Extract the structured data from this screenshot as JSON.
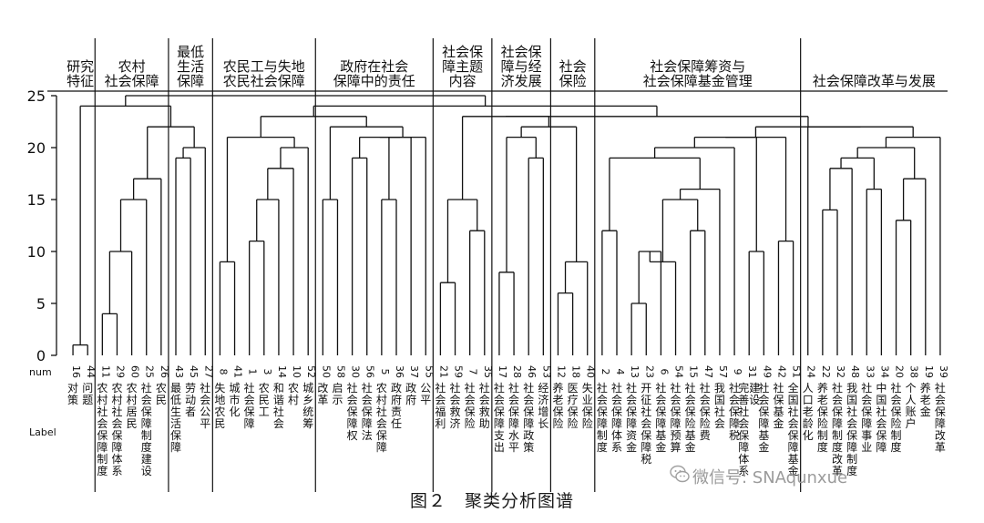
{
  "chart_data": {
    "type": "dendrogram",
    "ylim": [
      0,
      25
    ],
    "yticks": [
      0,
      5,
      10,
      15,
      20,
      25
    ],
    "xlabel_num": "num",
    "xlabel_label": "Label",
    "categories": [
      {
        "name": "研究\n特征",
        "range": [
          0,
          2
        ]
      },
      {
        "name": "农村\n社会保障",
        "range": [
          2,
          7
        ]
      },
      {
        "name": "最低\n生活\n保障",
        "range": [
          7,
          10
        ]
      },
      {
        "name": "农民工与失地\n农民社会保障",
        "range": [
          10,
          17
        ]
      },
      {
        "name": "政府在社会\n保障中的责任",
        "range": [
          17,
          25
        ]
      },
      {
        "name": "社会保\n障主题\n内容",
        "range": [
          25,
          29
        ]
      },
      {
        "name": "社会保\n障与经\n济发展",
        "range": [
          29,
          33
        ]
      },
      {
        "name": "社会\n保险",
        "range": [
          33,
          36
        ]
      },
      {
        "name": "社会保障筹资与\n社会保障基金管理",
        "range": [
          36,
          50
        ]
      },
      {
        "name": "社会保障改革与发展",
        "range": [
          50,
          60
        ]
      }
    ],
    "leaves": [
      {
        "num": "16",
        "label": "对策"
      },
      {
        "num": "44",
        "label": "问题"
      },
      {
        "num": "11",
        "label": "农村社会保障制度"
      },
      {
        "num": "29",
        "label": "农村社会保障体系"
      },
      {
        "num": "60",
        "label": "农村居民"
      },
      {
        "num": "25",
        "label": "社会保障制度建设"
      },
      {
        "num": "26",
        "label": "农民"
      },
      {
        "num": "43",
        "label": "最低生活保障"
      },
      {
        "num": "45",
        "label": "劳动者"
      },
      {
        "num": "27",
        "label": "社会公平"
      },
      {
        "num": "8",
        "label": "失地农民"
      },
      {
        "num": "41",
        "label": "城市化"
      },
      {
        "num": "1",
        "label": "社会保障"
      },
      {
        "num": "3",
        "label": "农民工"
      },
      {
        "num": "14",
        "label": "和谐社会"
      },
      {
        "num": "10",
        "label": "农村"
      },
      {
        "num": "52",
        "label": "城乡统筹"
      },
      {
        "num": "50",
        "label": "改革"
      },
      {
        "num": "58",
        "label": "启示"
      },
      {
        "num": "30",
        "label": "社会保障权"
      },
      {
        "num": "56",
        "label": "社会保障法"
      },
      {
        "num": "5",
        "label": "农村社会保障"
      },
      {
        "num": "36",
        "label": "政府责任"
      },
      {
        "num": "37",
        "label": "政府"
      },
      {
        "num": "55",
        "label": "公平"
      },
      {
        "num": "21",
        "label": "社会福利"
      },
      {
        "num": "59",
        "label": "社会救济"
      },
      {
        "num": "7",
        "label": "社会保险"
      },
      {
        "num": "35",
        "label": "社会救助"
      },
      {
        "num": "17",
        "label": "社会保障支出"
      },
      {
        "num": "28",
        "label": "社会保障水平"
      },
      {
        "num": "46",
        "label": "社会保障政策"
      },
      {
        "num": "53",
        "label": "经济增长"
      },
      {
        "num": "12",
        "label": "养老保险"
      },
      {
        "num": "18",
        "label": "医疗保险"
      },
      {
        "num": "40",
        "label": "失业保险"
      },
      {
        "num": "2",
        "label": "社会保障制度"
      },
      {
        "num": "4",
        "label": "社会保障体系"
      },
      {
        "num": "13",
        "label": "社会保障资金"
      },
      {
        "num": "23",
        "label": "开征社会保障税"
      },
      {
        "num": "6",
        "label": "社会保障基金"
      },
      {
        "num": "54",
        "label": "社会保障预算"
      },
      {
        "num": "15",
        "label": "社会保险基金"
      },
      {
        "num": "47",
        "label": "社会保险费"
      },
      {
        "num": "57",
        "label": "我国社会"
      },
      {
        "num": "9",
        "label": "社会保障税"
      },
      {
        "num": "31",
        "label": "完善社会保障体系建设"
      },
      {
        "num": "49",
        "label": "社会保障基金"
      },
      {
        "num": "42",
        "label": "社保基金"
      },
      {
        "num": "51",
        "label": "全国社会保障基金"
      },
      {
        "num": "24",
        "label": "人口老龄化"
      },
      {
        "num": "22",
        "label": "养老保险制度"
      },
      {
        "num": "32",
        "label": "社会保障制度改革"
      },
      {
        "num": "48",
        "label": "我国社会保障制度"
      },
      {
        "num": "33",
        "label": "社会保障事业"
      },
      {
        "num": "34",
        "label": "中国社会保障"
      },
      {
        "num": "20",
        "label": "社会保险制度"
      },
      {
        "num": "38",
        "label": "个人账户"
      },
      {
        "num": "19",
        "label": "养老金"
      },
      {
        "num": "39",
        "label": "社会保障改革"
      }
    ],
    "merges": [
      {
        "a": 0,
        "b": 1,
        "h": 1
      },
      {
        "a": 2,
        "b": 3,
        "h": 4
      },
      {
        "a": "m1",
        "b": 4,
        "h": 10
      },
      {
        "a": "m2",
        "b": 5,
        "h": 15
      },
      {
        "a": "m3",
        "b": 6,
        "h": 17
      },
      {
        "a": 7,
        "b": 8,
        "h": 19
      },
      {
        "a": "m5",
        "b": 9,
        "h": 20
      },
      {
        "a": "m4",
        "b": "m6",
        "h": 22
      },
      {
        "a": 10,
        "b": 11,
        "h": 9
      },
      {
        "a": 12,
        "b": 13,
        "h": 11
      },
      {
        "a": "m9",
        "b": 14,
        "h": 15
      },
      {
        "a": "m10",
        "b": 15,
        "h": 18
      },
      {
        "a": "m11",
        "b": 16,
        "h": 20
      },
      {
        "a": "m8",
        "b": "m12",
        "h": 21
      },
      {
        "a": 17,
        "b": 18,
        "h": 15
      },
      {
        "a": 19,
        "b": 20,
        "h": 19
      },
      {
        "a": 21,
        "b": 22,
        "h": 15
      },
      {
        "a": "m16",
        "b": 23,
        "h": 21
      },
      {
        "a": "m15",
        "b": "m17",
        "h": 21
      },
      {
        "a": "m18",
        "b": 24,
        "h": 21
      },
      {
        "a": "m14",
        "b": "m19",
        "h": 22
      },
      {
        "a": "m13",
        "b": "m20",
        "h": 23
      },
      {
        "a": 25,
        "b": 26,
        "h": 7
      },
      {
        "a": 27,
        "b": 28,
        "h": 12
      },
      {
        "a": "m22",
        "b": "m23",
        "h": 15
      },
      {
        "a": 29,
        "b": 30,
        "h": 8
      },
      {
        "a": 31,
        "b": 32,
        "h": 19
      },
      {
        "a": "m25",
        "b": "m26",
        "h": 21
      },
      {
        "a": 33,
        "b": 34,
        "h": 6
      },
      {
        "a": "m28",
        "b": 35,
        "h": 9
      },
      {
        "a": "m27",
        "b": "m29",
        "h": 22
      },
      {
        "a": "m24",
        "b": "m30",
        "h": 23
      },
      {
        "a": 36,
        "b": 37,
        "h": 12
      },
      {
        "a": 38,
        "b": 39,
        "h": 5
      },
      {
        "a": "m33",
        "b": 40,
        "h": 10
      },
      {
        "a": "m34",
        "b": 41,
        "h": 9
      },
      {
        "a": 42,
        "b": 43,
        "h": 12
      },
      {
        "a": "m35",
        "b": "m36",
        "h": 15
      },
      {
        "a": "m37",
        "b": 44,
        "h": 16
      },
      {
        "a": "m32",
        "b": "m38",
        "h": 19
      },
      {
        "a": "m39",
        "b": 45,
        "h": 20
      },
      {
        "a": 46,
        "b": 47,
        "h": 10
      },
      {
        "a": "m40",
        "b": "m41",
        "h": 21
      },
      {
        "a": 48,
        "b": 49,
        "h": 11
      },
      {
        "a": "m42",
        "b": "m43",
        "h": 21
      },
      {
        "a": 51,
        "b": 52,
        "h": 14
      },
      {
        "a": "m45",
        "b": 53,
        "h": 18
      },
      {
        "a": 54,
        "b": 55,
        "h": 16
      },
      {
        "a": "m46",
        "b": "m47",
        "h": 19
      },
      {
        "a": 56,
        "b": 57,
        "h": 13
      },
      {
        "a": "m49",
        "b": 58,
        "h": 17
      },
      {
        "a": "m48",
        "b": "m50",
        "h": 20
      },
      {
        "a": 59,
        "b": "m51",
        "h": 21
      },
      {
        "a": 50,
        "b": "m52",
        "h": 22
      },
      {
        "a": "m44",
        "b": "m53",
        "h": 22
      },
      {
        "a": "m31",
        "b": "m54",
        "h": 23
      },
      {
        "a": "m21",
        "b": "m55",
        "h": 24
      },
      {
        "a": "m0",
        "b": "m7",
        "h": 24
      },
      {
        "a": "m57",
        "b": "m56",
        "h": 25
      }
    ]
  },
  "caption": "图２　聚类分析图谱",
  "watermark": "微信号: SNAqunxue"
}
